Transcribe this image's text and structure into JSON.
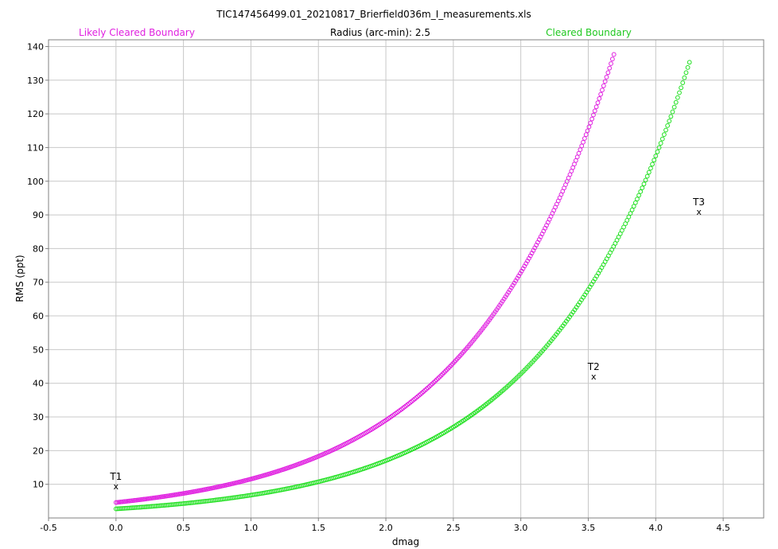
{
  "chart_data": {
    "type": "scatter",
    "title": "TIC147456499.01_20210817_Brierfield036m_I_measurements.xls",
    "subtitle": "Radius (arc-min): 2.5",
    "xlabel": "dmag",
    "ylabel": "RMS (ppt)",
    "xlim": [
      -0.5,
      4.8
    ],
    "ylim": [
      0,
      142
    ],
    "x_ticks": [
      -0.5,
      0.0,
      0.5,
      1.0,
      1.5,
      2.0,
      2.5,
      3.0,
      3.5,
      4.0,
      4.5
    ],
    "x_tick_labels": [
      "-0.5",
      "0.0",
      "0.5",
      "1.0",
      "1.5",
      "2.0",
      "2.5",
      "3.0",
      "3.5",
      "4.0",
      "4.5"
    ],
    "y_ticks": [
      10,
      20,
      30,
      40,
      50,
      60,
      70,
      80,
      90,
      100,
      110,
      120,
      130,
      140
    ],
    "y_tick_labels": [
      "10",
      "20",
      "30",
      "40",
      "50",
      "60",
      "70",
      "80",
      "90",
      "100",
      "110",
      "120",
      "130",
      "140"
    ],
    "grid": true,
    "series": [
      {
        "name": "Likely Cleared Boundary",
        "color": "#e020e0",
        "marker": "circle",
        "curve": {
          "formula": "y = a * 10^(0.4*x)",
          "a": 4.6
        },
        "x_range": [
          0.0,
          3.69
        ],
        "x": [
          0.0,
          0.5,
          1.0,
          1.5,
          2.0,
          2.5,
          3.0,
          3.5,
          3.69
        ],
        "y": [
          4.6,
          7.3,
          11.6,
          18.3,
          29.0,
          46.0,
          72.9,
          115.5,
          137.6
        ]
      },
      {
        "name": "Cleared Boundary",
        "color": "#20e020",
        "marker": "circle",
        "curve": {
          "formula": "y = a * 10^(0.4*x)",
          "a": 2.7
        },
        "x_range": [
          0.0,
          4.25
        ],
        "x": [
          0.0,
          0.5,
          1.0,
          1.5,
          2.0,
          2.5,
          3.0,
          3.5,
          4.0,
          4.25
        ],
        "y": [
          2.7,
          4.3,
          6.8,
          10.7,
          17.0,
          27.0,
          42.8,
          67.8,
          107.5,
          135.3
        ]
      }
    ],
    "points": [
      {
        "label": "T1",
        "x": 0.0,
        "y": 9.5
      },
      {
        "label": "T2",
        "x": 3.54,
        "y": 42.0
      },
      {
        "label": "T3",
        "x": 4.32,
        "y": 91.0
      }
    ],
    "point_marker": "x"
  }
}
